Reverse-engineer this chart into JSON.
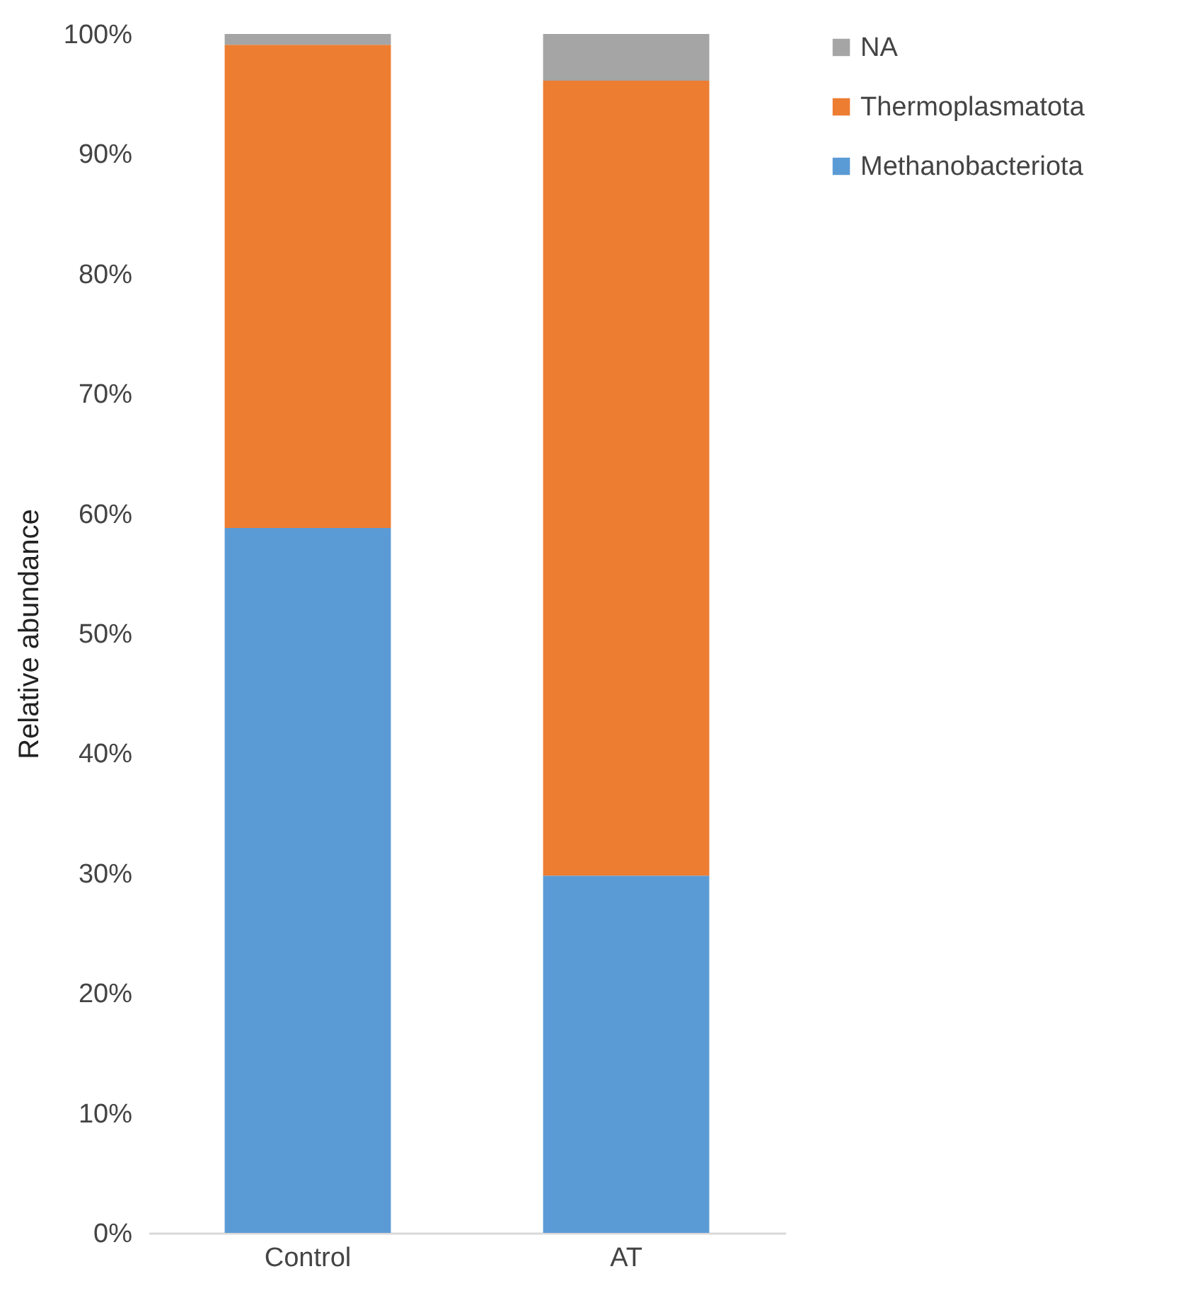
{
  "chart_data": {
    "type": "bar",
    "stacked": true,
    "ylabel": "Relative abundance",
    "categories": [
      "Control",
      "AT"
    ],
    "series": [
      {
        "name": "Methanobacteriota",
        "color": "#5b9bd5",
        "values": [
          58.8,
          29.8
        ]
      },
      {
        "name": "Thermoplasmatota",
        "color": "#ed7d31",
        "values": [
          40.3,
          66.3
        ]
      },
      {
        "name": "NA",
        "color": "#a5a5a5",
        "values": [
          0.9,
          3.9
        ]
      }
    ],
    "ylim": [
      0,
      100
    ],
    "yticks": [
      {
        "value": 0,
        "label": "0%"
      },
      {
        "value": 10,
        "label": "10%"
      },
      {
        "value": 20,
        "label": "20%"
      },
      {
        "value": 30,
        "label": "30%"
      },
      {
        "value": 40,
        "label": "40%"
      },
      {
        "value": 50,
        "label": "50%"
      },
      {
        "value": 60,
        "label": "60%"
      },
      {
        "value": 70,
        "label": "70%"
      },
      {
        "value": 80,
        "label": "80%"
      },
      {
        "value": 90,
        "label": "90%"
      },
      {
        "value": 100,
        "label": "100%"
      }
    ],
    "grid": false,
    "legend": "right"
  }
}
